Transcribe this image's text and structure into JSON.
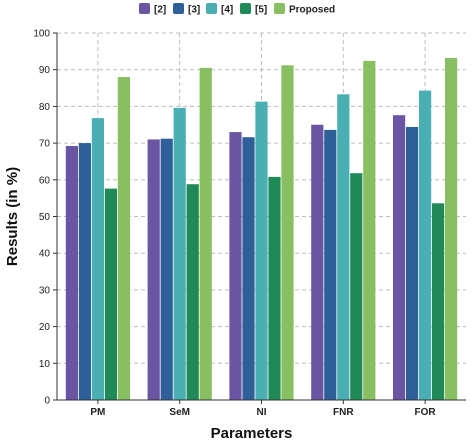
{
  "chart_data": {
    "type": "bar",
    "xlabel": "Parameters",
    "ylabel": "Results (in %)",
    "ylim": [
      0,
      100
    ],
    "yticks": [
      0,
      10,
      20,
      30,
      40,
      50,
      60,
      70,
      80,
      90,
      100
    ],
    "grid": true,
    "legend_position": "top",
    "categories": [
      "PM",
      "SeM",
      "NI",
      "FNR",
      "FOR"
    ],
    "series": [
      {
        "name": "[2]",
        "color": "#6a55a3",
        "values": [
          69.2,
          71.0,
          73.0,
          75.0,
          77.6
        ]
      },
      {
        "name": "[3]",
        "color": "#2f5f98",
        "values": [
          70.0,
          71.2,
          71.6,
          73.6,
          74.4
        ]
      },
      {
        "name": "[4]",
        "color": "#4aafb3",
        "values": [
          76.8,
          79.6,
          81.3,
          83.3,
          84.3
        ]
      },
      {
        "name": "[5]",
        "color": "#1f8a57",
        "values": [
          57.6,
          58.8,
          60.8,
          61.8,
          53.6
        ]
      },
      {
        "name": "Proposed",
        "color": "#88c061",
        "values": [
          88.0,
          90.5,
          91.2,
          92.4,
          93.2
        ]
      }
    ]
  }
}
